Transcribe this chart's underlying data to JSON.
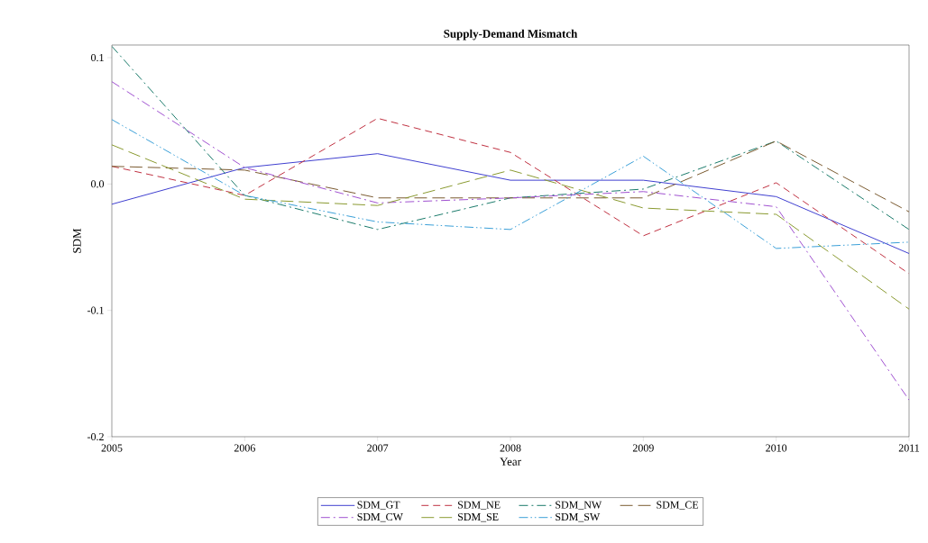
{
  "chart_data": {
    "type": "line",
    "title": "**Supply-Demand Mismatch**",
    "xlabel": "Year",
    "ylabel": "SDM",
    "x": [
      2005,
      2006,
      2007,
      2008,
      2009,
      2010,
      2011
    ],
    "xlim": [
      2005,
      2011
    ],
    "xticks": [
      2005,
      2006,
      2007,
      2008,
      2009,
      2010,
      2011
    ],
    "ylim": [
      -0.2,
      0.11
    ],
    "yticks": [
      -0.2,
      -0.1,
      {
        "value": 0,
        "label": "0.0"
      },
      0.1
    ],
    "grid": false,
    "legend": "bottom",
    "marker": "none",
    "series": [
      {
        "name": "SDM_GT",
        "color": "#3f3fd0",
        "line_style": "solid",
        "values": [
          -0.016,
          0.013,
          0.024,
          0.003,
          0.003,
          -0.01,
          -0.055
        ]
      },
      {
        "name": "SDM_NE",
        "color": "#c03040",
        "line_style": "dashed",
        "values": [
          0.014,
          -0.009,
          0.052,
          0.025,
          -0.041,
          0.001,
          -0.071
        ]
      },
      {
        "name": "SDM_NW",
        "color": "#1a7a6a",
        "line_style": "dashdot",
        "values": [
          0.109,
          -0.009,
          -0.036,
          -0.011,
          -0.004,
          0.034,
          -0.036
        ]
      },
      {
        "name": "SDM_CE",
        "color": "#7a5a30",
        "line_style": "longdashed",
        "values": [
          0.014,
          0.011,
          -0.011,
          -0.011,
          -0.011,
          0.034,
          -0.022
        ]
      },
      {
        "name": "SDM_CW",
        "color": "#a050d0",
        "line_style": "dashdot",
        "values": [
          0.081,
          0.013,
          -0.015,
          -0.011,
          -0.006,
          -0.018,
          -0.171
        ]
      },
      {
        "name": "SDM_SE",
        "color": "#8a9a30",
        "line_style": "longdashed",
        "values": [
          0.031,
          -0.012,
          -0.017,
          0.011,
          -0.019,
          -0.024,
          -0.099
        ]
      },
      {
        "name": "SDM_SW",
        "color": "#3aa0d8",
        "line_style": "dashdotdot",
        "values": [
          0.051,
          -0.009,
          -0.03,
          -0.036,
          0.022,
          -0.051,
          -0.046
        ]
      }
    ]
  }
}
